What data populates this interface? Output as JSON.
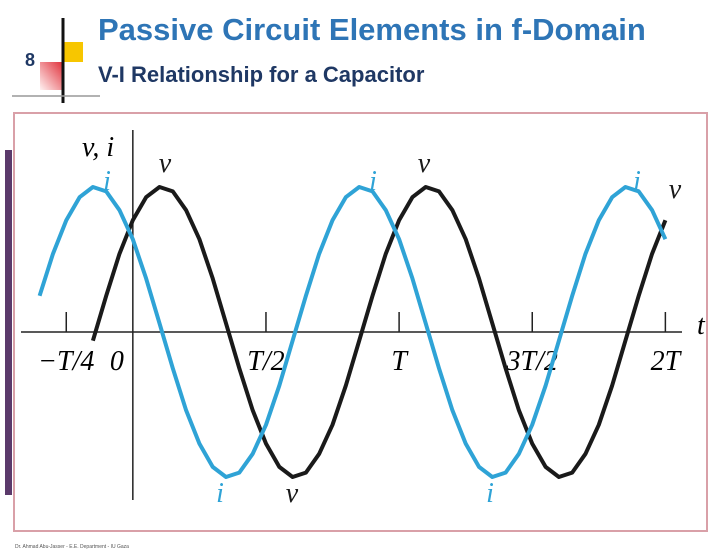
{
  "slide": {
    "number": "8",
    "title": "Passive Circuit Elements in f-Domain",
    "subtitle": "V-I Relationship for a Capacitor",
    "footer": "Dr. Ahmad Abu-Jasser - E.E. Department - IU Gaza"
  },
  "chart_data": {
    "type": "line",
    "x_label": "t",
    "y_label": "v, i",
    "x": [
      -0.35,
      -0.3,
      -0.25,
      -0.2,
      -0.15,
      -0.1,
      -0.05,
      0,
      0.05,
      0.1,
      0.15,
      0.2,
      0.25,
      0.3,
      0.35,
      0.4,
      0.45,
      0.5,
      0.55,
      0.6,
      0.65,
      0.7,
      0.75,
      0.8,
      0.85,
      0.9,
      0.95,
      1,
      1.05,
      1.1,
      1.15,
      1.2,
      1.25,
      1.3,
      1.35,
      1.4,
      1.45,
      1.5,
      1.55,
      1.6,
      1.65,
      1.7,
      1.75,
      1.8,
      1.85,
      1.9,
      1.95,
      2
    ],
    "series": [
      {
        "name": "v",
        "color": "#1a1a1a",
        "values": [
          null,
          null,
          null,
          null,
          -0.06,
          0.25,
          0.54,
          0.77,
          0.93,
          1,
          0.97,
          0.84,
          0.64,
          0.37,
          0.06,
          -0.25,
          -0.54,
          -0.77,
          -0.93,
          -1,
          -0.97,
          -0.84,
          -0.64,
          -0.37,
          -0.06,
          0.25,
          0.54,
          0.77,
          0.93,
          1,
          0.97,
          0.84,
          0.64,
          0.37,
          0.06,
          -0.25,
          -0.54,
          -0.77,
          -0.93,
          -1,
          -0.97,
          -0.84,
          -0.64,
          -0.37,
          -0.06,
          0.25,
          0.54,
          0.77
        ]
      },
      {
        "name": "i",
        "color": "#2fa3d6",
        "values": [
          0.25,
          0.54,
          0.77,
          0.93,
          1,
          0.97,
          0.84,
          0.64,
          0.37,
          0.06,
          -0.25,
          -0.54,
          -0.77,
          -0.93,
          -1,
          -0.97,
          -0.84,
          -0.64,
          -0.37,
          -0.06,
          0.25,
          0.54,
          0.77,
          0.93,
          1,
          0.97,
          0.84,
          0.64,
          0.37,
          0.06,
          -0.25,
          -0.54,
          -0.77,
          -0.93,
          -1,
          -0.97,
          -0.84,
          -0.64,
          -0.37,
          -0.06,
          0.25,
          0.54,
          0.77,
          0.93,
          1,
          0.97,
          0.84,
          0.64
        ]
      }
    ],
    "xlim": [
      -0.42,
      2.1
    ],
    "ylim": [
      -1.2,
      1.3
    ],
    "xticks": [
      {
        "value": -0.25,
        "label": "−T/4"
      },
      0,
      {
        "value": 0.5,
        "label": "T/2"
      },
      {
        "value": 1,
        "label": "T"
      },
      {
        "value": 1.5,
        "label": "3T/2"
      },
      {
        "value": 2,
        "label": "2T"
      }
    ],
    "grid": false
  }
}
